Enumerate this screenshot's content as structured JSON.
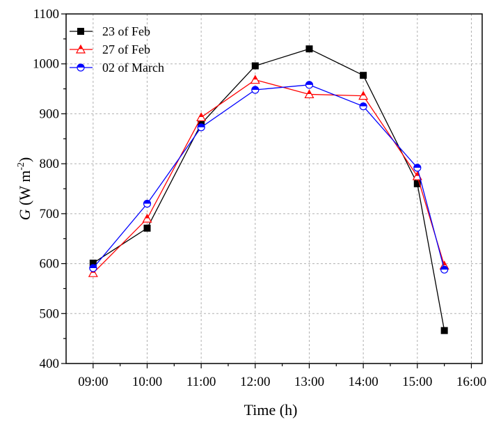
{
  "chart_data": {
    "type": "line",
    "xlabel": "Time (h)",
    "ylabel_symbol": "G",
    "ylabel_units": " (W m",
    "ylabel_exponent": "-2",
    "ylabel_close": ")",
    "x_tick_labels": [
      "09:00",
      "10:00",
      "11:00",
      "12:00",
      "13:00",
      "14:00",
      "15:00",
      "16:00"
    ],
    "x_tick_values": [
      9,
      10,
      11,
      12,
      13,
      14,
      15,
      16
    ],
    "xlim": [
      8.5,
      16.2
    ],
    "ylim": [
      400,
      1100
    ],
    "y_ticks": [
      400,
      500,
      600,
      700,
      800,
      900,
      1000,
      1100
    ],
    "grid": true,
    "legend_position": "top-left",
    "x": [
      9,
      10,
      11,
      12,
      13,
      14,
      15,
      15.5
    ],
    "series": [
      {
        "name": "23 of Feb",
        "color": "#000000",
        "marker": "filled-square",
        "values": [
          601,
          671,
          880,
          996,
          1030,
          977,
          760,
          466
        ]
      },
      {
        "name": "27 of Feb",
        "color": "#ff0000",
        "marker": "half-filled-triangle",
        "values": [
          581,
          690,
          893,
          968,
          939,
          936,
          775,
          596
        ]
      },
      {
        "name": "02 of March",
        "color": "#0000ff",
        "marker": "half-filled-circle",
        "values": [
          591,
          720,
          873,
          948,
          958,
          915,
          792,
          588
        ]
      }
    ]
  }
}
